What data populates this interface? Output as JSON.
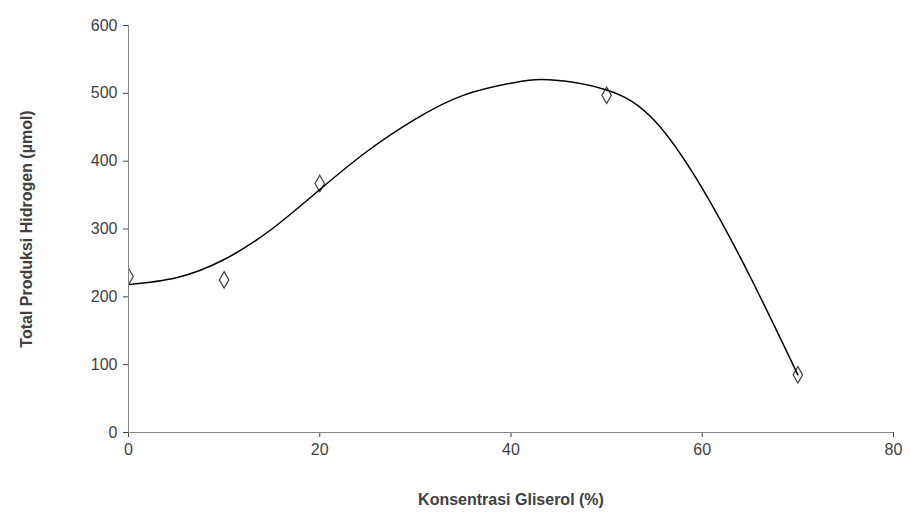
{
  "chart_data": {
    "type": "scatter",
    "x_label": "Konsentrasi Gliserol (%)",
    "y_label": "Total Produksi Hidrogen (µmol)",
    "xlim": [
      0,
      80
    ],
    "xticks": [
      0,
      20,
      40,
      60,
      80
    ],
    "ylim": [
      0,
      600
    ],
    "yticks": [
      0,
      100,
      200,
      300,
      400,
      500,
      600
    ],
    "grid": false,
    "series": [
      {
        "type": "scatter",
        "marker": "diamond",
        "color": "#404040",
        "x": [
          0,
          10,
          20,
          50,
          70
        ],
        "values": [
          230,
          225,
          367,
          497,
          85
        ]
      },
      {
        "type": "line",
        "line_style": "solid",
        "color": "#000000",
        "x": [
          0,
          5,
          10,
          15,
          20,
          25,
          30,
          35,
          40,
          44,
          50,
          55,
          60,
          65,
          70
        ],
        "values": [
          218,
          228,
          255,
          300,
          358,
          415,
          462,
          497,
          515,
          520,
          505,
          460,
          360,
          230,
          85
        ]
      }
    ]
  }
}
